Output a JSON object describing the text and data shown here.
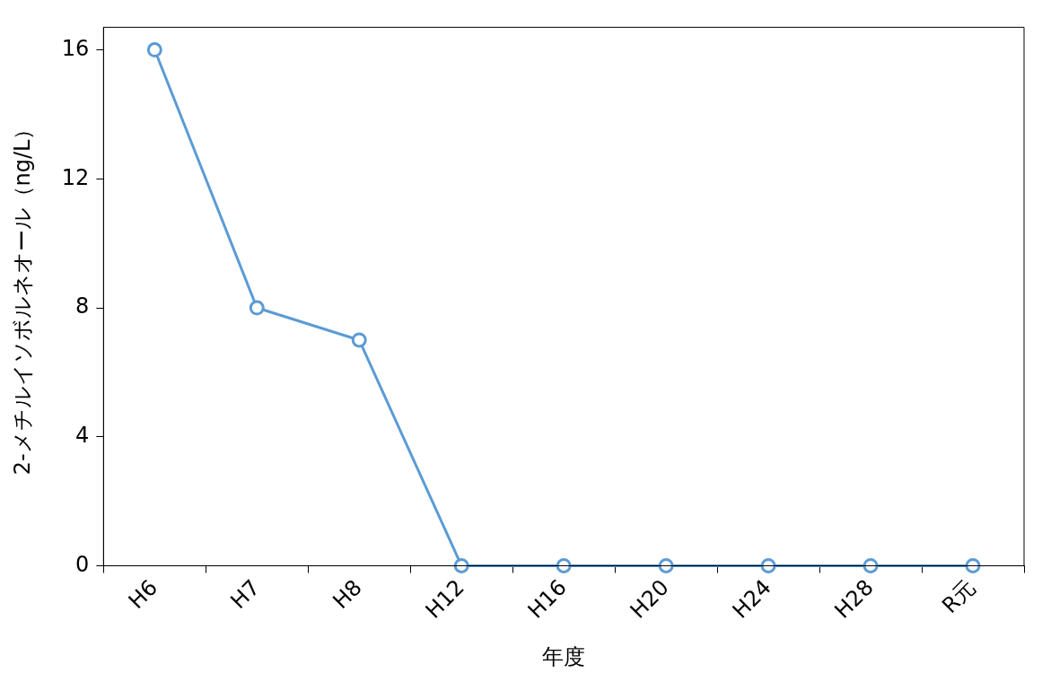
{
  "chart_data": {
    "type": "line",
    "xlabel": "年度",
    "ylabel": "2-メチルイソボルネオール（ng/L）",
    "categories": [
      "H6",
      "H7",
      "H8",
      "H12",
      "H16",
      "H20",
      "H24",
      "H28",
      "R元"
    ],
    "series": [
      {
        "color": "#5b9bd5",
        "values": [
          16,
          8,
          7,
          0,
          0,
          0,
          0,
          0,
          0
        ]
      }
    ],
    "ylim": [
      0,
      16.7
    ],
    "yticks": [
      0,
      4,
      8,
      12,
      16
    ],
    "grid": false,
    "legend": false,
    "marker": "circle",
    "line_style": "solid"
  }
}
